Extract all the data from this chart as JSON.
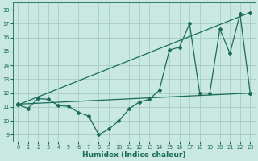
{
  "title": "",
  "xlabel": "Humidex (Indice chaleur)",
  "ylabel": "",
  "bg_color": "#c8e8e0",
  "line_color": "#1a6b5a",
  "grid_color": "#a0c8c0",
  "xlim": [
    -0.5,
    23.5
  ],
  "ylim": [
    8.5,
    18.5
  ],
  "xticks": [
    0,
    1,
    2,
    3,
    4,
    5,
    6,
    7,
    8,
    9,
    10,
    11,
    12,
    13,
    14,
    15,
    16,
    17,
    18,
    19,
    20,
    21,
    22,
    23
  ],
  "yticks": [
    9,
    10,
    11,
    12,
    13,
    14,
    15,
    16,
    17,
    18
  ],
  "line1_x": [
    0,
    23
  ],
  "line1_y": [
    11.2,
    12.0
  ],
  "line2_x": [
    0,
    1,
    2,
    3,
    4,
    5,
    6,
    7,
    8,
    9,
    10,
    11,
    12,
    13,
    14,
    15,
    16,
    17,
    18,
    19,
    20,
    21,
    22,
    23
  ],
  "line2_y": [
    11.15,
    10.9,
    11.6,
    11.55,
    11.1,
    11.05,
    10.6,
    10.35,
    9.0,
    9.4,
    10.0,
    10.85,
    11.35,
    11.55,
    12.2,
    15.1,
    15.3,
    17.0,
    12.0,
    12.0,
    16.6,
    14.85,
    17.7,
    12.0
  ],
  "line3_x": [
    0,
    23
  ],
  "line3_y": [
    11.15,
    17.8
  ],
  "marker_size": 2.0,
  "line_width": 0.9,
  "tick_fontsize": 4.8,
  "xlabel_fontsize": 6.5,
  "spine_lw": 0.6
}
